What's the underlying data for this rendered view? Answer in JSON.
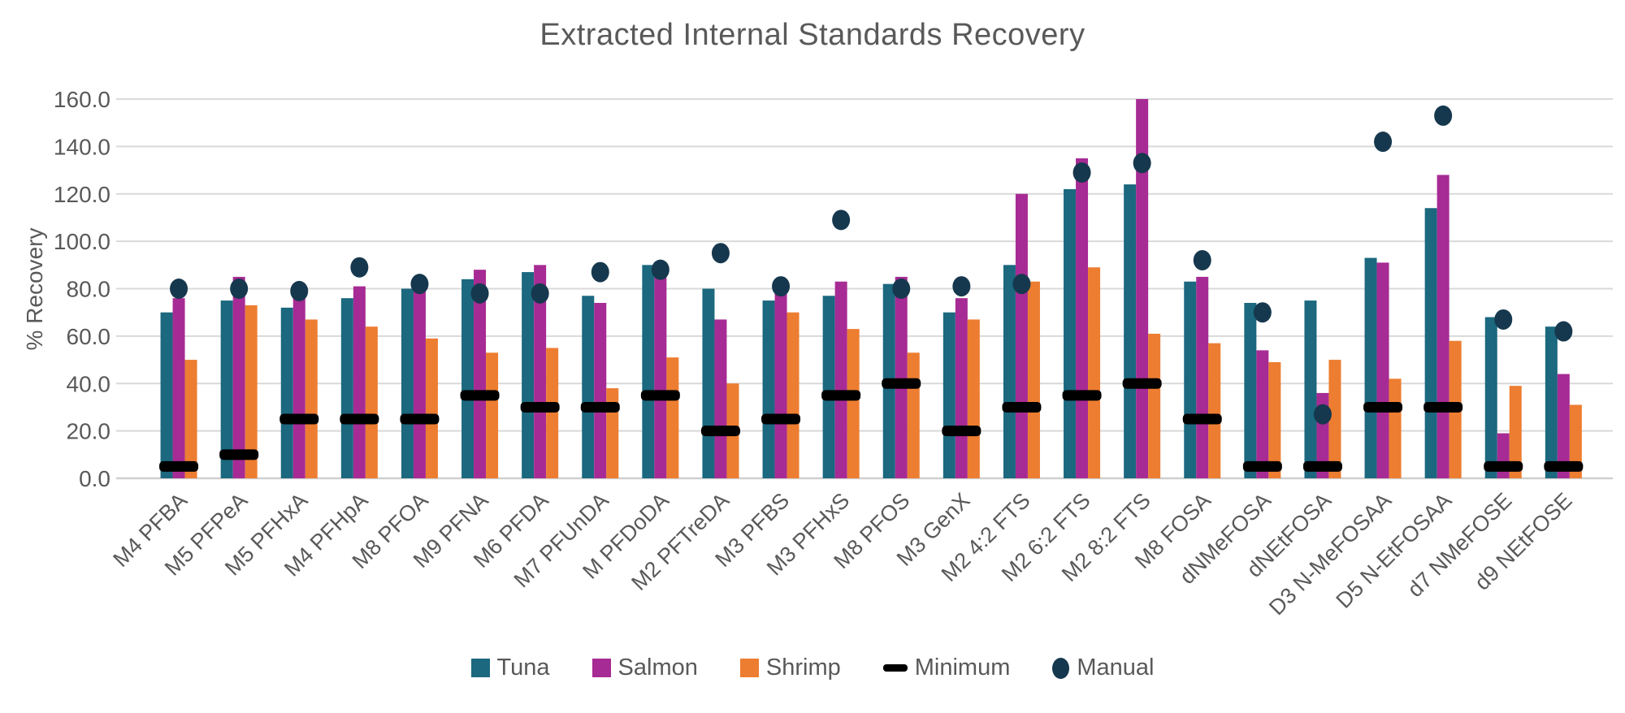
{
  "colors": {
    "tuna": "#1B687F",
    "salmon": "#A72B94",
    "shrimp": "#ED7D31",
    "minimum": "#000000",
    "manual": "#16384E",
    "gridline": "#D9D9D9",
    "baseline": "#CFCFCF",
    "text": "#595959"
  },
  "chart_data": {
    "type": "bar",
    "title": "Extracted Internal Standards Recovery",
    "xlabel": "",
    "ylabel": "% Recovery",
    "ylim": [
      0,
      160
    ],
    "ytick_step": 20,
    "ytick_decimals": 1,
    "grid": true,
    "legend_position": "bottom",
    "categories": [
      "M4 PFBA",
      "M5 PFPeA",
      "M5 PFHxA",
      "M4 PFHpA",
      "M8 PFOA",
      "M9 PFNA",
      "M6 PFDA",
      "M7 PFUnDA",
      "M PFDoDA",
      "M2 PFTreDA",
      "M3 PFBS",
      "M3 PFHxS",
      "M8 PFOS",
      "M3 GenX",
      "M2 4:2 FTS",
      "M2 6:2 FTS",
      "M2 8:2 FTS",
      "M8 FOSA",
      "dNMeFOSA",
      "dNEtFOSA",
      "D3 N-MeFOSAA",
      "D5 N-EtFOSAA",
      "d7 NMeFOSE",
      "d9 NEtFOSE"
    ],
    "series": [
      {
        "name": "Tuna",
        "mark": "bar",
        "color_key": "tuna",
        "values": [
          70,
          75,
          72,
          76,
          80,
          84,
          87,
          77,
          90,
          80,
          75,
          77,
          82,
          70,
          90,
          122,
          124,
          83,
          74,
          75,
          93,
          114,
          68,
          64
        ]
      },
      {
        "name": "Salmon",
        "mark": "bar",
        "color_key": "salmon",
        "values": [
          76,
          85,
          77,
          81,
          82,
          88,
          90,
          74,
          85,
          67,
          82,
          83,
          85,
          76,
          120,
          135,
          160,
          85,
          54,
          36,
          91,
          128,
          19,
          44
        ]
      },
      {
        "name": "Shrimp",
        "mark": "bar",
        "color_key": "shrimp",
        "values": [
          50,
          73,
          67,
          64,
          59,
          53,
          55,
          38,
          51,
          40,
          70,
          63,
          53,
          67,
          83,
          89,
          61,
          57,
          49,
          50,
          42,
          58,
          39,
          31
        ]
      },
      {
        "name": "Minimum",
        "mark": "dash",
        "color_key": "minimum",
        "values": [
          5,
          10,
          25,
          25,
          25,
          35,
          30,
          30,
          35,
          20,
          25,
          35,
          40,
          20,
          30,
          35,
          40,
          25,
          5,
          5,
          30,
          30,
          5,
          5
        ]
      },
      {
        "name": "Manual",
        "mark": "dot",
        "color_key": "manual",
        "values": [
          80,
          80,
          79,
          89,
          82,
          78,
          78,
          87,
          88,
          95,
          81,
          109,
          80,
          81,
          82,
          129,
          133,
          92,
          70,
          27,
          142,
          153,
          67,
          62
        ]
      }
    ]
  }
}
